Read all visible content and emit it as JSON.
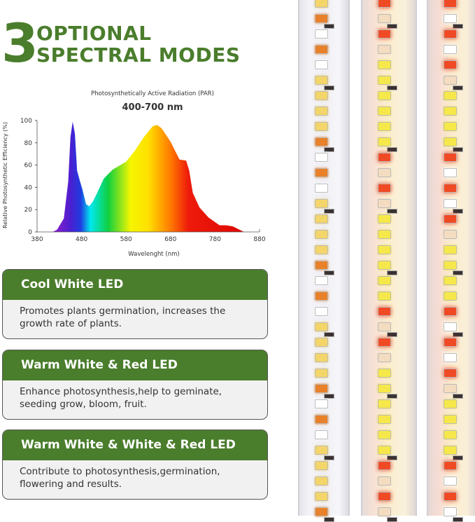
{
  "heading": {
    "number": "3",
    "line1": "OPTIONAL",
    "line2": "SPECTRAL MODES",
    "color": "#4a7d2c"
  },
  "chart_data": {
    "type": "area",
    "title": "Photosynthetically Active Radiation (PAR)",
    "subtitle": "400-700 nm",
    "xlabel": "Wavelenght (nm)",
    "ylabel": "Relative Photosynthetic Efficiency (%)",
    "xlim": [
      380,
      880
    ],
    "ylim": [
      0,
      100
    ],
    "xticks": [
      380,
      480,
      580,
      680,
      780,
      880
    ],
    "yticks": [
      0,
      20,
      40,
      60,
      80,
      100
    ],
    "grid": false,
    "x": [
      380,
      415,
      425,
      440,
      450,
      455,
      460,
      465,
      470,
      476,
      482,
      490,
      497,
      505,
      515,
      530,
      550,
      580,
      600,
      620,
      640,
      650,
      660,
      680,
      700,
      715,
      722,
      730,
      745,
      765,
      790,
      805,
      820,
      830,
      845,
      880
    ],
    "y": [
      0,
      0,
      2,
      12,
      45,
      85,
      99,
      88,
      55,
      46,
      38,
      25,
      23,
      27,
      35,
      48,
      56,
      63,
      73,
      85,
      95,
      96,
      93,
      81,
      65,
      64,
      55,
      35,
      22,
      13,
      6,
      6,
      5,
      3,
      0,
      0
    ]
  },
  "modes": [
    {
      "title": "Cool White LED",
      "description": "Promotes plants germination, increases the growth rate of plants."
    },
    {
      "title": "Warm White & Red LED",
      "description": "Enhance photosynthesis,help to geminate, seeding grow, bloom, fruit."
    },
    {
      "title": "Warm White & White & Red LED",
      "description": "Contribute to photosynthesis,germination, flowering and results."
    }
  ]
}
